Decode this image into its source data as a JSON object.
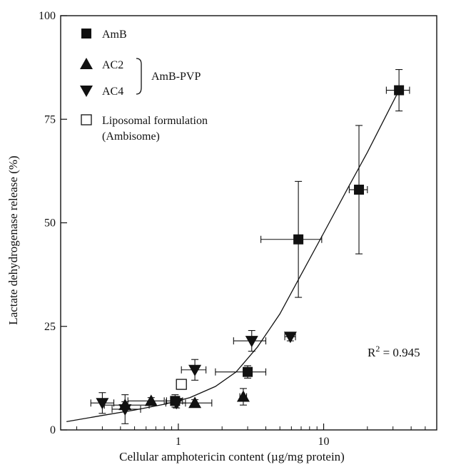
{
  "chart_data": {
    "type": "scatter",
    "xlabel": "Cellular amphotericin content (µg/mg protein)",
    "ylabel": "Lactate dehydrogenase release (%)",
    "x_scale": "log",
    "xlim": [
      0.155,
      60
    ],
    "ylim": [
      0,
      100
    ],
    "x_ticks": [
      {
        "value": 1,
        "label": "1"
      },
      {
        "value": 10,
        "label": "10"
      }
    ],
    "y_ticks": [
      {
        "value": 0,
        "label": "0"
      },
      {
        "value": 25,
        "label": "25"
      },
      {
        "value": 50,
        "label": "50"
      },
      {
        "value": 75,
        "label": "75"
      },
      {
        "value": 100,
        "label": "100"
      }
    ],
    "grid": false,
    "legend_position": "top-left",
    "legend_group_label": "AmB-PVP",
    "annotation": {
      "base": "R",
      "sup": "2",
      "rest": " = 0.945"
    },
    "series": [
      {
        "name": "AmB",
        "marker": "square-filled",
        "points": [
          {
            "x": 0.95,
            "y": 7,
            "xerr": [
              0.12,
              0.12
            ],
            "yerr": [
              1.5,
              1.5
            ]
          },
          {
            "x": 3.0,
            "y": 14,
            "xerr": [
              1.2,
              1.0
            ],
            "yerr": [
              1.5,
              1.5
            ]
          },
          {
            "x": 6.7,
            "y": 46,
            "xerr": [
              3.0,
              3.0
            ],
            "yerr": [
              14,
              14
            ]
          },
          {
            "x": 17.5,
            "y": 58,
            "xerr": [
              2.5,
              2.5
            ],
            "yerr": [
              15.5,
              15.5
            ]
          },
          {
            "x": 33,
            "y": 82,
            "xerr": [
              6,
              6
            ],
            "yerr": [
              5,
              5
            ]
          }
        ]
      },
      {
        "name": "AC2",
        "marker": "triangle-up-filled",
        "points": [
          {
            "x": 0.43,
            "y": 6,
            "xerr": [
              0.12,
              0.2
            ],
            "yerr": [
              0.8,
              0.8
            ]
          },
          {
            "x": 0.65,
            "y": 7,
            "xerr": [
              0.2,
              0.15
            ],
            "yerr": [
              0.8,
              0.8
            ]
          },
          {
            "x": 1.3,
            "y": 6.5,
            "xerr": [
              0.3,
              0.4
            ],
            "yerr": [
              0.8,
              0.8
            ]
          },
          {
            "x": 2.8,
            "y": 8,
            "xerr": [
              0.15,
              0.15
            ],
            "yerr": [
              2,
              2
            ]
          }
        ]
      },
      {
        "name": "AC4",
        "marker": "triangle-down-filled",
        "points": [
          {
            "x": 0.3,
            "y": 6.5,
            "xerr": [
              0.05,
              0.06
            ],
            "yerr": [
              2.5,
              2.5
            ]
          },
          {
            "x": 0.43,
            "y": 5,
            "xerr": [
              0.08,
              0.12
            ],
            "yerr": [
              3.5,
              3.5
            ]
          },
          {
            "x": 0.97,
            "y": 6.5,
            "xerr": [
              0.15,
              0.15
            ],
            "yerr": [
              1.2,
              1.2
            ]
          },
          {
            "x": 1.3,
            "y": 14.5,
            "xerr": [
              0.25,
              0.25
            ],
            "yerr": [
              2.5,
              2.5
            ]
          },
          {
            "x": 3.2,
            "y": 21.5,
            "xerr": [
              0.8,
              0.8
            ],
            "yerr": [
              2.5,
              2.5
            ]
          },
          {
            "x": 5.9,
            "y": 22.5,
            "xerr": [
              0.5,
              0.5
            ],
            "yerr": [
              1,
              1
            ]
          }
        ]
      },
      {
        "name": "Liposomal formulation",
        "name_line2": "(Ambisome)",
        "marker": "square-open",
        "points": [
          {
            "x": 1.05,
            "y": 11,
            "xerr": [
              0.05,
              0.05
            ],
            "yerr": [
              1.2,
              1.2
            ]
          }
        ]
      }
    ],
    "fit_curve": [
      [
        0.17,
        2
      ],
      [
        0.3,
        3.5
      ],
      [
        0.5,
        4.8
      ],
      [
        0.8,
        6.2
      ],
      [
        1.2,
        7.8
      ],
      [
        1.8,
        10.5
      ],
      [
        2.5,
        14
      ],
      [
        3.5,
        20
      ],
      [
        5,
        28
      ],
      [
        7,
        37.5
      ],
      [
        10,
        47.5
      ],
      [
        15,
        59
      ],
      [
        20,
        67
      ],
      [
        27,
        76
      ],
      [
        33,
        82
      ]
    ]
  }
}
